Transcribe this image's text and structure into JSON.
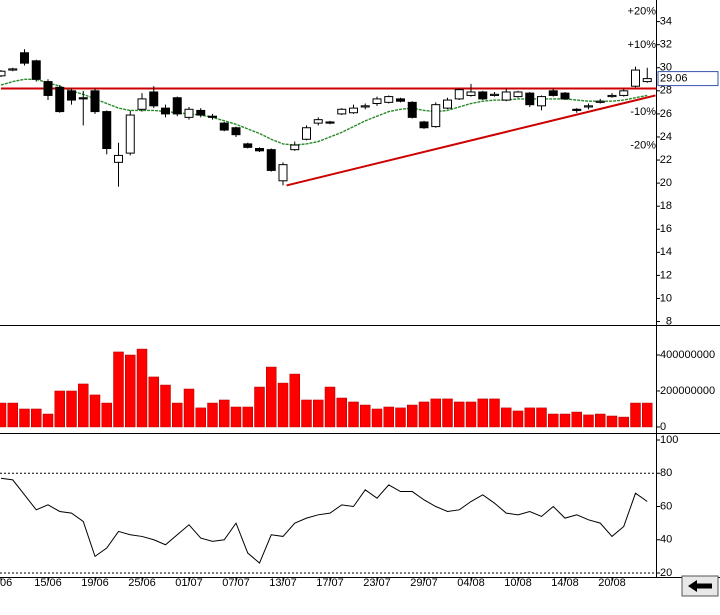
{
  "chart_data": [
    {
      "type": "candlestick",
      "open": [
        29.3,
        29.8,
        31.3,
        30.6,
        28.8,
        28.3,
        28.0,
        27.4,
        28.0,
        26.2,
        21.8,
        22.6,
        26.4,
        27.9,
        26.5,
        27.4,
        25.7,
        26.3,
        25.8,
        25.2,
        24.8,
        23.4,
        23.0,
        22.9,
        20.2,
        22.9,
        23.8,
        25.2,
        25.3,
        26.0,
        26.1,
        26.6,
        26.9,
        27.0,
        27.3,
        27.0,
        25.3,
        24.9,
        26.5,
        27.3,
        27.6,
        27.9,
        27.6,
        27.2,
        27.5,
        27.8,
        26.7,
        28.0,
        27.8,
        26.4,
        26.6,
        27.0,
        27.5,
        27.6,
        28.4,
        28.8
      ],
      "high": [
        29.8,
        30.0,
        31.6,
        30.7,
        29.0,
        28.5,
        28.2,
        28.0,
        28.2,
        26.3,
        23.5,
        26.3,
        27.8,
        28.4,
        26.8,
        27.5,
        26.6,
        26.5,
        26.0,
        25.3,
        24.9,
        23.5,
        23.1,
        23.0,
        21.8,
        23.6,
        25.0,
        25.7,
        25.4,
        26.5,
        26.8,
        26.9,
        27.5,
        27.6,
        27.4,
        27.1,
        25.4,
        27.0,
        27.4,
        28.2,
        28.6,
        28.0,
        27.9,
        28.2,
        28.0,
        27.9,
        27.6,
        28.2,
        27.9,
        26.5,
        26.9,
        27.3,
        27.8,
        28.2,
        30.1,
        30.0
      ],
      "low": [
        29.2,
        29.7,
        30.2,
        28.8,
        27.2,
        26.1,
        26.8,
        25.0,
        26.0,
        22.5,
        19.7,
        22.4,
        26.2,
        26.5,
        25.7,
        25.8,
        25.5,
        25.7,
        25.5,
        24.5,
        24.0,
        23.0,
        22.7,
        21.0,
        19.8,
        22.8,
        23.7,
        25.0,
        25.1,
        25.9,
        26.0,
        26.4,
        26.7,
        26.9,
        27.0,
        25.6,
        24.7,
        24.8,
        26.4,
        27.2,
        27.5,
        27.2,
        27.5,
        27.1,
        27.4,
        26.6,
        26.3,
        27.5,
        27.2,
        26.1,
        26.4,
        26.9,
        27.4,
        27.5,
        28.3,
        28.7
      ],
      "close": [
        29.7,
        29.9,
        30.4,
        29.0,
        27.6,
        26.2,
        27.2,
        27.3,
        26.2,
        23.0,
        22.4,
        25.9,
        27.3,
        26.7,
        26.0,
        26.0,
        26.4,
        25.9,
        25.7,
        24.6,
        24.2,
        23.1,
        22.8,
        21.1,
        21.6,
        23.3,
        24.8,
        25.5,
        25.2,
        26.4,
        26.5,
        26.7,
        27.3,
        27.5,
        27.1,
        25.7,
        24.8,
        26.8,
        27.2,
        28.1,
        27.9,
        27.3,
        27.7,
        27.9,
        27.9,
        26.8,
        27.5,
        27.6,
        27.3,
        26.3,
        26.7,
        27.1,
        27.6,
        28.0,
        29.8,
        29.06
      ],
      "series": [
        {
          "color": "#2a8a2a",
          "values": [
            28.5,
            28.8,
            29.0,
            29.0,
            28.7,
            28.4,
            28.0,
            27.7,
            27.3,
            26.9,
            26.5,
            26.3,
            26.3,
            26.3,
            26.2,
            26.1,
            26.0,
            25.9,
            25.7,
            25.4,
            25.1,
            24.7,
            24.3,
            23.8,
            23.4,
            23.3,
            23.4,
            23.6,
            24.0,
            24.4,
            24.9,
            25.4,
            25.8,
            26.2,
            26.4,
            26.5,
            26.3,
            26.2,
            26.3,
            26.6,
            26.9,
            27.1,
            27.2,
            27.2,
            27.3,
            27.3,
            27.3,
            27.3,
            27.3,
            27.2,
            27.1,
            27.1,
            27.1,
            27.2,
            27.4,
            27.6
          ]
        }
      ],
      "ylim": [
        7.7,
        35.7
      ],
      "yticks": [
        8,
        10,
        12,
        14,
        16,
        18,
        20,
        22,
        24,
        26,
        28,
        30,
        32,
        34
      ],
      "percent_ticks": [
        {
          "value": 34.87,
          "label": "+20%"
        },
        {
          "value": 31.97,
          "label": "+10%"
        },
        {
          "value": 26.15,
          "label": "-10%"
        },
        {
          "value": 23.25,
          "label": "-20%"
        }
      ],
      "percent_colors": [
        "#2e8b2e",
        "#2e8b2e",
        "#a00000",
        "#a00000"
      ],
      "last_price": 29.06,
      "trendlines": [
        {
          "color": "#cc0000",
          "x": [
            0,
            55.8
          ],
          "y": [
            28.2,
            28.2
          ]
        },
        {
          "color": "#cc0000",
          "x": [
            24.3,
            55.7
          ],
          "y": [
            19.8,
            27.6
          ]
        }
      ]
    },
    {
      "type": "bar",
      "color": "#ff0000",
      "values": [
        133000000,
        133000000,
        100000000,
        100000000,
        72000000,
        200000000,
        200000000,
        239000000,
        178000000,
        133000000,
        417000000,
        400000000,
        433000000,
        278000000,
        233000000,
        133000000,
        211000000,
        106000000,
        133000000,
        150000000,
        111000000,
        111000000,
        222000000,
        333000000,
        244000000,
        294000000,
        150000000,
        150000000,
        222000000,
        161000000,
        139000000,
        122000000,
        100000000,
        111000000,
        106000000,
        122000000,
        139000000,
        156000000,
        156000000,
        139000000,
        139000000,
        156000000,
        156000000,
        106000000,
        89000000,
        106000000,
        106000000,
        72000000,
        72000000,
        83000000,
        67000000,
        72000000,
        61000000,
        55000000,
        133000000,
        133000000
      ],
      "ylim": [
        -28000000,
        550000000
      ],
      "yticks": [
        0,
        200000000,
        400000000
      ]
    },
    {
      "type": "line",
      "color": "#000000",
      "values": [
        77,
        76,
        67,
        58,
        61,
        57,
        56,
        51,
        30,
        35,
        45,
        43,
        42,
        40,
        37,
        43,
        49,
        41,
        39,
        40,
        50,
        32,
        26,
        43,
        42,
        50,
        53,
        55,
        56,
        61,
        60,
        70,
        65,
        73,
        69,
        69,
        64,
        60,
        57,
        58,
        63,
        67,
        62,
        56,
        55,
        57,
        54,
        60,
        53,
        55,
        52,
        50,
        42,
        48,
        68,
        63
      ],
      "categories": [
        "06",
        null,
        null,
        null,
        "15/06",
        null,
        null,
        null,
        "19/06",
        null,
        null,
        null,
        "25/06",
        null,
        null,
        null,
        "01/07",
        null,
        null,
        null,
        "07/07",
        null,
        null,
        null,
        "13/07",
        null,
        null,
        null,
        "17/07",
        null,
        null,
        null,
        "23/07",
        null,
        null,
        null,
        "29/07",
        null,
        null,
        null,
        "04/08",
        null,
        null,
        null,
        "10/08",
        null,
        null,
        null,
        "14/08",
        null,
        null,
        null,
        "20/08",
        null,
        null,
        null
      ],
      "ylim": [
        17.6,
        101.8
      ],
      "yticks": [
        20,
        40,
        60,
        80,
        100
      ],
      "levels": [
        20,
        80
      ]
    }
  ]
}
